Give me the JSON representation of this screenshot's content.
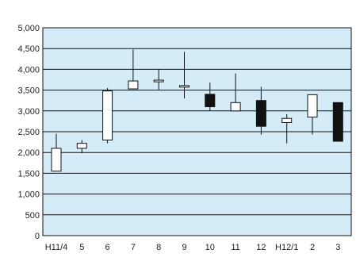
{
  "chart_data": {
    "type": "candlestick",
    "title": "",
    "xlabel": "",
    "ylabel": "",
    "categories": [
      "H11/4",
      "5",
      "6",
      "7",
      "8",
      "9",
      "10",
      "11",
      "12",
      "H12/1",
      "2",
      "3"
    ],
    "open": [
      1550,
      2100,
      2300,
      3530,
      3700,
      3600,
      3400,
      3000,
      3250,
      2720,
      2850,
      3200
    ],
    "high": [
      2450,
      2300,
      3550,
      4480,
      4000,
      4420,
      3680,
      3900,
      3580,
      2920,
      3400,
      3210
    ],
    "low": [
      1550,
      1980,
      2220,
      3530,
      3500,
      3300,
      3000,
      3000,
      2430,
      2220,
      2430,
      2260
    ],
    "close": [
      2100,
      2220,
      3480,
      3720,
      3740,
      3610,
      3100,
      3200,
      2630,
      2820,
      3390,
      2270
    ],
    "ylim": [
      0,
      5000
    ],
    "yticks": [
      "0",
      "500",
      "1,000",
      "1,500",
      "2,000",
      "2,500",
      "3,000",
      "3,500",
      "4,000",
      "4,500",
      "5,000"
    ],
    "grid": true,
    "colors": {
      "plot_bg": "#d4ecf7",
      "up_fill": "#ffffff",
      "down_fill": "#111111",
      "line": "#111111"
    }
  }
}
